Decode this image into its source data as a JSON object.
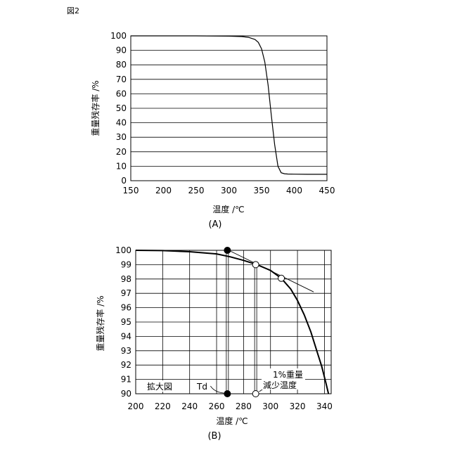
{
  "figure_label": "図2",
  "chart_data": [
    {
      "id": "A",
      "type": "line",
      "caption": "(A)",
      "xlabel": "温度 /℃",
      "ylabel": "重量残存率 /%",
      "xlim": [
        150,
        450
      ],
      "ylim": [
        0,
        100
      ],
      "x_ticks": [
        150,
        200,
        250,
        300,
        350,
        400,
        450
      ],
      "y_ticks": [
        0,
        10,
        20,
        30,
        40,
        50,
        60,
        70,
        80,
        90,
        100
      ],
      "grid": "horizontal",
      "series": [
        {
          "x": [
            150,
            250,
            300,
            320,
            330,
            340,
            345,
            350,
            355,
            360,
            365,
            370,
            375,
            380,
            385,
            390,
            400,
            420,
            450
          ],
          "y": [
            100,
            100,
            99.8,
            99.5,
            99,
            97.5,
            95.5,
            91,
            82,
            66,
            45,
            25,
            10,
            5.5,
            4.8,
            4.6,
            4.5,
            4.4,
            4.4
          ]
        }
      ]
    },
    {
      "id": "B",
      "type": "line",
      "caption": "(B)",
      "xlabel": "温度 /℃",
      "ylabel": "重量残存率 /%",
      "xlim": [
        200,
        345
      ],
      "ylim": [
        90,
        100
      ],
      "x_ticks": [
        200,
        220,
        240,
        260,
        280,
        300,
        320,
        340
      ],
      "y_ticks": [
        90,
        91,
        92,
        93,
        94,
        95,
        96,
        97,
        98,
        99,
        100
      ],
      "grid": "both",
      "series": [
        {
          "x": [
            200,
            220,
            240,
            260,
            270,
            280,
            290,
            300,
            308,
            315,
            320,
            325,
            330,
            335,
            338,
            341,
            343
          ],
          "y": [
            100,
            99.98,
            99.9,
            99.75,
            99.55,
            99.3,
            99.0,
            98.6,
            98.05,
            97.3,
            96.5,
            95.5,
            94.3,
            92.8,
            91.9,
            90.8,
            90.0
          ]
        }
      ],
      "annotations": {
        "inset_label": "拡大図",
        "td_label": "Td",
        "one_pct_label_line1": "1%重量",
        "one_pct_label_line2": "減少温度",
        "td_x": 268,
        "one_pct_x": 289,
        "tangent_points": [
          [
            308,
            98.05
          ],
          [
            289,
            99.0
          ]
        ],
        "tangent_extends_to": [
          332,
          97.1
        ]
      }
    }
  ]
}
